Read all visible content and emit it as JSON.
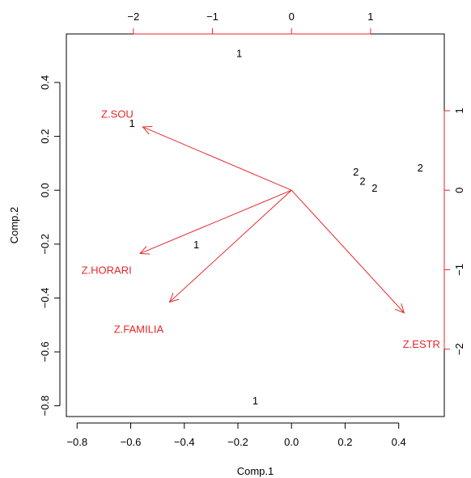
{
  "chart_data": {
    "type": "biplot",
    "xlabel": "Comp.1",
    "ylabel": "Comp.2",
    "xlim": [
      -0.84,
      0.57
    ],
    "ylim": [
      -0.84,
      0.58
    ],
    "x_ticks": [
      "−0.8",
      "−0.6",
      "−0.4",
      "−0.2",
      "0.0",
      "0.2",
      "0.4"
    ],
    "x_tick_values": [
      -0.8,
      -0.6,
      -0.4,
      -0.2,
      0.0,
      0.2,
      0.4
    ],
    "y_ticks": [
      "−0.8",
      "−0.6",
      "−0.4",
      "−0.2",
      "0.0",
      "0.2",
      "0.4"
    ],
    "y_tick_values": [
      -0.8,
      -0.6,
      -0.4,
      -0.2,
      0.0,
      0.2,
      0.4
    ],
    "top_ticks": [
      "−2",
      "−1",
      "0",
      "1"
    ],
    "top_tick_values": [
      -2,
      -1,
      0,
      1
    ],
    "top_scale": 0.295,
    "right_ticks": [
      "−2",
      "−1",
      "0",
      "1"
    ],
    "right_tick_values": [
      -2,
      -1,
      0,
      1
    ],
    "right_scale": 0.295,
    "observations": [
      {
        "label": "1",
        "x": -0.195,
        "y": 0.51
      },
      {
        "label": "1",
        "x": -0.595,
        "y": 0.25
      },
      {
        "label": "1",
        "x": -0.355,
        "y": -0.2
      },
      {
        "label": "1",
        "x": -0.135,
        "y": -0.78
      },
      {
        "label": "2",
        "x": 0.24,
        "y": 0.07
      },
      {
        "label": "2",
        "x": 0.265,
        "y": 0.035
      },
      {
        "label": "2",
        "x": 0.31,
        "y": 0.01
      },
      {
        "label": "2",
        "x": 0.48,
        "y": 0.085
      }
    ],
    "loadings": [
      {
        "name": "Z.SOU",
        "x": -0.555,
        "y": 0.235,
        "label_x": -0.65,
        "label_y": 0.285
      },
      {
        "name": "Z.HORARI",
        "x": -0.565,
        "y": -0.235,
        "label_x": -0.69,
        "label_y": -0.295
      },
      {
        "name": "Z.FAMILIA",
        "x": -0.455,
        "y": -0.415,
        "label_x": -0.57,
        "label_y": -0.515
      },
      {
        "name": "Z.ESTR",
        "x": 0.42,
        "y": -0.455,
        "label_x": 0.485,
        "label_y": -0.57
      }
    ],
    "colors": {
      "loadings": "#e8262a",
      "points": "#000000",
      "axes": "#000000"
    }
  }
}
